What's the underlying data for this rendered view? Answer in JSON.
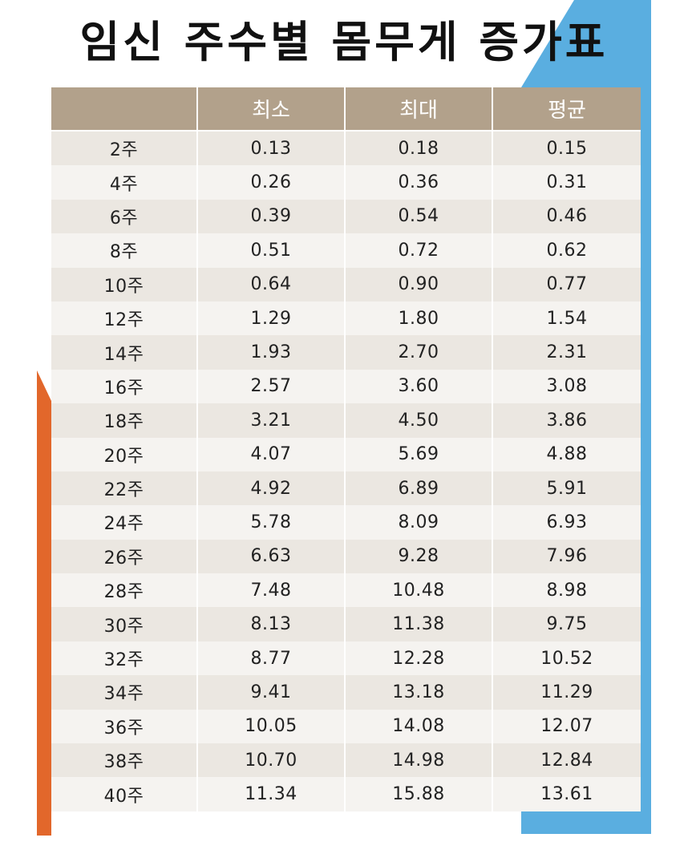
{
  "colors": {
    "accent_blue": "#5aaee0",
    "accent_orange": "#e2672b",
    "header_bg": "#b2a18b",
    "row_odd": "#ebe7e1",
    "row_even": "#f5f3f0"
  },
  "title": "임신 주수별 몸무게 증가표",
  "table": {
    "columns": [
      "",
      "최소",
      "최대",
      "평균"
    ],
    "rows": [
      [
        "2주",
        "0.13",
        "0.18",
        "0.15"
      ],
      [
        "4주",
        "0.26",
        "0.36",
        "0.31"
      ],
      [
        "6주",
        "0.39",
        "0.54",
        "0.46"
      ],
      [
        "8주",
        "0.51",
        "0.72",
        "0.62"
      ],
      [
        "10주",
        "0.64",
        "0.90",
        "0.77"
      ],
      [
        "12주",
        "1.29",
        "1.80",
        "1.54"
      ],
      [
        "14주",
        "1.93",
        "2.70",
        "2.31"
      ],
      [
        "16주",
        "2.57",
        "3.60",
        "3.08"
      ],
      [
        "18주",
        "3.21",
        "4.50",
        "3.86"
      ],
      [
        "20주",
        "4.07",
        "5.69",
        "4.88"
      ],
      [
        "22주",
        "4.92",
        "6.89",
        "5.91"
      ],
      [
        "24주",
        "5.78",
        "8.09",
        "6.93"
      ],
      [
        "26주",
        "6.63",
        "9.28",
        "7.96"
      ],
      [
        "28주",
        "7.48",
        "10.48",
        "8.98"
      ],
      [
        "30주",
        "8.13",
        "11.38",
        "9.75"
      ],
      [
        "32주",
        "8.77",
        "12.28",
        "10.52"
      ],
      [
        "34주",
        "9.41",
        "13.18",
        "11.29"
      ],
      [
        "36주",
        "10.05",
        "14.08",
        "12.07"
      ],
      [
        "38주",
        "10.70",
        "14.98",
        "12.84"
      ],
      [
        "40주",
        "11.34",
        "15.88",
        "13.61"
      ]
    ]
  }
}
